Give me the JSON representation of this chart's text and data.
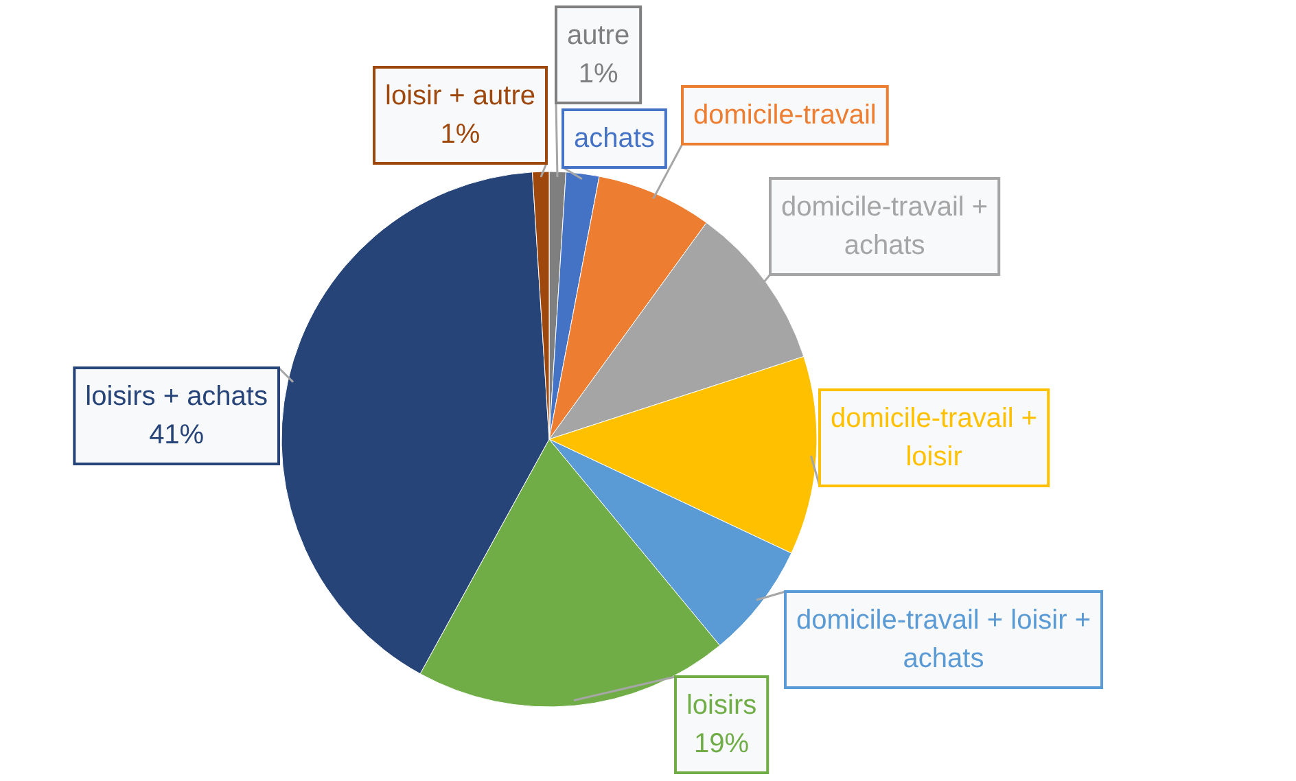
{
  "chart_data": {
    "type": "pie",
    "categories": [
      "autre",
      "achats",
      "domicile-travail",
      "domicile-travail + achats",
      "domicile-travail + loisir",
      "domicile-travail + loisir + achats",
      "loisirs",
      "loisirs + achats",
      "loisir + autre"
    ],
    "values": [
      1,
      2,
      7,
      10,
      12,
      7,
      19,
      41,
      1
    ],
    "value_labels": [
      "1%",
      null,
      null,
      null,
      null,
      null,
      "19%",
      "41%",
      "1%"
    ],
    "colors": [
      "#7f7f7f",
      "#4472c4",
      "#ed7d31",
      "#a5a5a5",
      "#ffc000",
      "#5b9bd5",
      "#70ad47",
      "#264478",
      "#9e480e"
    ]
  }
}
